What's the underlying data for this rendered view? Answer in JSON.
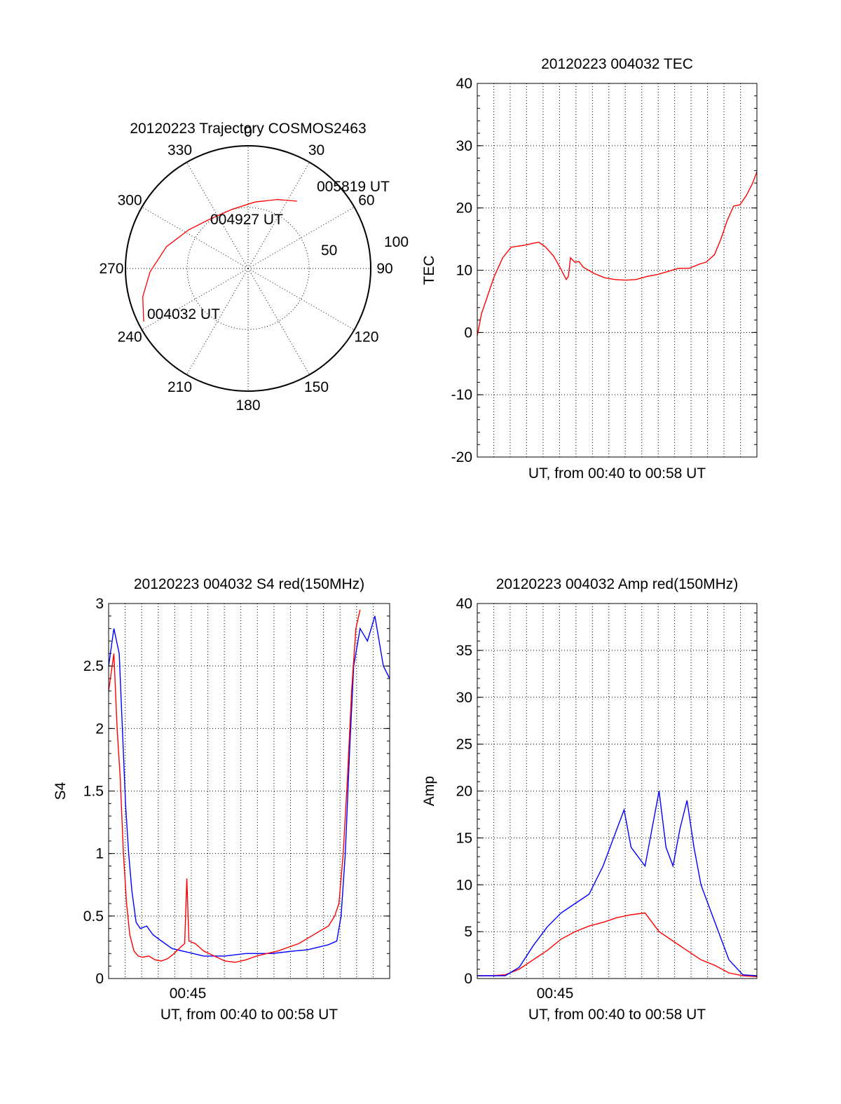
{
  "chart_data": [
    {
      "type": "polar",
      "title": "20120223 Trajectory COSMOS2463",
      "azimuth_labels": [
        "0",
        "30",
        "60",
        "90",
        "120",
        "150",
        "180",
        "210",
        "240",
        "270",
        "300",
        "330"
      ],
      "radial_labels": [
        "50",
        "100"
      ],
      "series": [
        {
          "color": "#ff0000",
          "points": [
            {
              "az": 243,
              "el": 4
            },
            {
              "az": 255,
              "el": 10
            },
            {
              "az": 268,
              "el": 18
            },
            {
              "az": 285,
              "el": 28
            },
            {
              "az": 303,
              "el": 38
            },
            {
              "az": 321,
              "el": 44
            },
            {
              "az": 345,
              "el": 45
            },
            {
              "az": 6,
              "el": 41
            },
            {
              "az": 23,
              "el": 35
            },
            {
              "az": 36,
              "el": 29
            }
          ]
        }
      ],
      "annotations": [
        "005819 UT",
        "004927 UT",
        "004032 UT"
      ]
    },
    {
      "type": "line",
      "title": "20120223 004032 TEC",
      "xlabel": "UT, from 00:40 to 00:58 UT",
      "ylabel": "TEC",
      "ylim": [
        -20,
        40
      ],
      "yticks": [
        "40",
        "30",
        "20",
        "10",
        "0",
        "-10",
        "-20"
      ],
      "grid": true,
      "series": [
        {
          "color": "#ff0000",
          "points": [
            [
              0.0,
              -0.5
            ],
            [
              0.02,
              3
            ],
            [
              0.05,
              6
            ],
            [
              0.08,
              9
            ],
            [
              0.12,
              12
            ],
            [
              0.16,
              13.7
            ],
            [
              0.22,
              14
            ],
            [
              0.26,
              14.3
            ],
            [
              0.29,
              14.5
            ],
            [
              0.32,
              13.8
            ],
            [
              0.36,
              12.3
            ],
            [
              0.39,
              10.5
            ],
            [
              0.42,
              8.5
            ],
            [
              0.43,
              9
            ],
            [
              0.44,
              12
            ],
            [
              0.46,
              11.3
            ],
            [
              0.48,
              11.4
            ],
            [
              0.5,
              10.5
            ],
            [
              0.55,
              9.5
            ],
            [
              0.6,
              8.8
            ],
            [
              0.65,
              8.5
            ],
            [
              0.7,
              8.4
            ],
            [
              0.75,
              8.5
            ],
            [
              0.8,
              9
            ],
            [
              0.85,
              9.3
            ],
            [
              0.9,
              9.8
            ],
            [
              0.95,
              10.3
            ],
            [
              1.0,
              10.3
            ],
            [
              1.05,
              11
            ],
            [
              1.08,
              11.3
            ],
            [
              1.12,
              12.5
            ],
            [
              1.15,
              15
            ],
            [
              1.18,
              18
            ],
            [
              1.21,
              20.3
            ],
            [
              1.24,
              20.5
            ],
            [
              1.27,
              22
            ],
            [
              1.3,
              24
            ],
            [
              1.32,
              25.8
            ]
          ]
        }
      ]
    },
    {
      "type": "line",
      "title": "20120223 004032 S4 red(150MHz)",
      "xlabel": "UT, from 00:40 to 00:58 UT",
      "ylabel": "S4",
      "ylim": [
        0,
        3
      ],
      "yticks": [
        "3",
        "2.5",
        "2",
        "1.5",
        "1",
        "0.5",
        "0"
      ],
      "xticks": [
        "00:45"
      ],
      "grid": true,
      "series": [
        {
          "color": "#0000ff",
          "points": [
            [
              0.0,
              2.5
            ],
            [
              0.05,
              2.8
            ],
            [
              0.1,
              2.6
            ],
            [
              0.13,
              2.0
            ],
            [
              0.16,
              1.4
            ],
            [
              0.19,
              1.0
            ],
            [
              0.22,
              0.7
            ],
            [
              0.26,
              0.45
            ],
            [
              0.3,
              0.4
            ],
            [
              0.36,
              0.42
            ],
            [
              0.42,
              0.35
            ],
            [
              0.5,
              0.3
            ],
            [
              0.6,
              0.24
            ],
            [
              0.7,
              0.22
            ],
            [
              0.8,
              0.2
            ],
            [
              0.9,
              0.18
            ],
            [
              1.0,
              0.18
            ],
            [
              1.1,
              0.18
            ],
            [
              1.2,
              0.19
            ],
            [
              1.3,
              0.2
            ],
            [
              1.4,
              0.2
            ],
            [
              1.55,
              0.2
            ],
            [
              1.65,
              0.21
            ],
            [
              1.75,
              0.22
            ],
            [
              1.88,
              0.23
            ],
            [
              1.98,
              0.25
            ],
            [
              2.08,
              0.27
            ],
            [
              2.16,
              0.3
            ],
            [
              2.2,
              0.5
            ],
            [
              2.24,
              1.0
            ],
            [
              2.28,
              1.8
            ],
            [
              2.32,
              2.5
            ],
            [
              2.38,
              2.8
            ],
            [
              2.45,
              2.7
            ],
            [
              2.52,
              2.9
            ],
            [
              2.6,
              2.5
            ],
            [
              2.66,
              2.4
            ]
          ]
        },
        {
          "color": "#ff0000",
          "points": [
            [
              0.0,
              2.3
            ],
            [
              0.05,
              2.6
            ],
            [
              0.08,
              2.0
            ],
            [
              0.11,
              1.6
            ],
            [
              0.14,
              1.0
            ],
            [
              0.17,
              0.6
            ],
            [
              0.2,
              0.35
            ],
            [
              0.24,
              0.22
            ],
            [
              0.28,
              0.18
            ],
            [
              0.32,
              0.17
            ],
            [
              0.38,
              0.18
            ],
            [
              0.44,
              0.15
            ],
            [
              0.5,
              0.14
            ],
            [
              0.56,
              0.16
            ],
            [
              0.62,
              0.2
            ],
            [
              0.68,
              0.25
            ],
            [
              0.72,
              0.28
            ],
            [
              0.74,
              0.8
            ],
            [
              0.76,
              0.3
            ],
            [
              0.82,
              0.28
            ],
            [
              0.9,
              0.22
            ],
            [
              1.0,
              0.18
            ],
            [
              1.1,
              0.14
            ],
            [
              1.2,
              0.13
            ],
            [
              1.3,
              0.15
            ],
            [
              1.4,
              0.18
            ],
            [
              1.5,
              0.2
            ],
            [
              1.6,
              0.22
            ],
            [
              1.7,
              0.25
            ],
            [
              1.8,
              0.28
            ],
            [
              1.9,
              0.33
            ],
            [
              2.0,
              0.38
            ],
            [
              2.08,
              0.42
            ],
            [
              2.14,
              0.5
            ],
            [
              2.18,
              0.6
            ],
            [
              2.22,
              1.0
            ],
            [
              2.26,
              1.6
            ],
            [
              2.3,
              2.3
            ],
            [
              2.34,
              2.8
            ],
            [
              2.38,
              2.95
            ]
          ]
        }
      ]
    },
    {
      "type": "line",
      "title": "20120223 004032 Amp red(150MHz)",
      "xlabel": "UT, from 00:40 to 00:58 UT",
      "ylabel": "Amp",
      "ylim": [
        0,
        40
      ],
      "yticks": [
        "40",
        "35",
        "30",
        "25",
        "20",
        "15",
        "10",
        "5",
        "0"
      ],
      "xticks": [
        "00:45"
      ],
      "grid": true,
      "series": [
        {
          "color": "#ff0000",
          "points": [
            [
              0.0,
              0.3
            ],
            [
              0.1,
              0.3
            ],
            [
              0.2,
              0.4
            ],
            [
              0.3,
              1.0
            ],
            [
              0.4,
              2.0
            ],
            [
              0.5,
              3.0
            ],
            [
              0.6,
              4.2
            ],
            [
              0.7,
              5.0
            ],
            [
              0.8,
              5.6
            ],
            [
              0.9,
              6.0
            ],
            [
              1.0,
              6.5
            ],
            [
              1.1,
              6.8
            ],
            [
              1.2,
              7.0
            ],
            [
              1.3,
              5.0
            ],
            [
              1.4,
              4.0
            ],
            [
              1.5,
              3.0
            ],
            [
              1.6,
              2.0
            ],
            [
              1.7,
              1.4
            ],
            [
              1.8,
              0.6
            ],
            [
              1.9,
              0.3
            ],
            [
              2.0,
              0.2
            ]
          ]
        },
        {
          "color": "#0000ff",
          "points": [
            [
              0.0,
              0.3
            ],
            [
              0.1,
              0.3
            ],
            [
              0.2,
              0.3
            ],
            [
              0.3,
              1.2
            ],
            [
              0.4,
              3.5
            ],
            [
              0.5,
              5.5
            ],
            [
              0.6,
              7.0
            ],
            [
              0.7,
              8.0
            ],
            [
              0.8,
              9.0
            ],
            [
              0.9,
              12.0
            ],
            [
              1.0,
              16.0
            ],
            [
              1.05,
              18.0
            ],
            [
              1.1,
              14.0
            ],
            [
              1.2,
              12.0
            ],
            [
              1.25,
              16.0
            ],
            [
              1.3,
              20.0
            ],
            [
              1.35,
              14.0
            ],
            [
              1.4,
              12.0
            ],
            [
              1.45,
              16.0
            ],
            [
              1.5,
              19.0
            ],
            [
              1.55,
              14.0
            ],
            [
              1.6,
              10.0
            ],
            [
              1.7,
              6.0
            ],
            [
              1.8,
              2.0
            ],
            [
              1.9,
              0.4
            ],
            [
              2.0,
              0.3
            ]
          ]
        }
      ]
    }
  ]
}
